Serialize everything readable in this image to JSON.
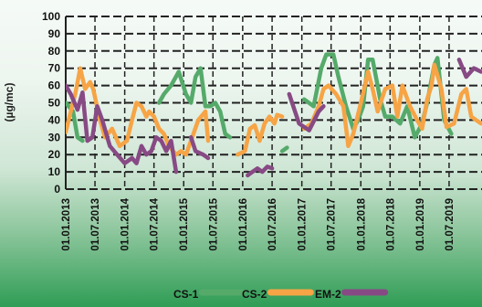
{
  "chart_data": {
    "type": "line",
    "title": "",
    "xlabel": "",
    "ylabel": "(µg/mc)",
    "ylim": [
      0,
      100
    ],
    "yticks": [
      "0",
      "10",
      "20",
      "30",
      "40",
      "50",
      "60",
      "70",
      "80",
      "90",
      "100"
    ],
    "xtick_labels": [
      "01.01.2013",
      "01.07.2013",
      "01.01.2014",
      "01.07.2014",
      "01.01.2015",
      "01.07.2015",
      "01.01.2016",
      "01.07.2016",
      "01.01.2017",
      "01.07.2017",
      "01.01.2018",
      "01.07.2018",
      "01.01.2019",
      "01.07.2019"
    ],
    "grid": "dashed, horizontal and vertical",
    "legend_position": "bottom",
    "series": [
      {
        "name": "CS-1",
        "color": "#55aa6a",
        "segments": [
          [
            [
              "2013-01-01",
              50
            ],
            [
              "2013-02-15",
              45
            ],
            [
              "2013-03-15",
              30
            ],
            [
              "2013-04-15",
              28
            ]
          ],
          [
            [
              "2014-08-01",
              50
            ],
            [
              "2014-09-01",
              55
            ],
            [
              "2014-10-15",
              60
            ],
            [
              "2014-12-01",
              68
            ],
            [
              "2015-01-15",
              55
            ],
            [
              "2015-02-15",
              50
            ],
            [
              "2015-03-15",
              65
            ],
            [
              "2015-04-15",
              70
            ],
            [
              "2015-05-15",
              48
            ],
            [
              "2015-06-15",
              48
            ],
            [
              "2015-07-15",
              50
            ],
            [
              "2015-08-15",
              45
            ],
            [
              "2015-09-15",
              32
            ],
            [
              "2015-10-15",
              30
            ]
          ],
          [
            [
              "2016-09-01",
              22
            ],
            [
              "2016-10-01",
              24
            ]
          ],
          [
            [
              "2017-01-15",
              52
            ],
            [
              "2017-03-15",
              48
            ],
            [
              "2017-05-01",
              70
            ],
            [
              "2017-06-01",
              78
            ],
            [
              "2017-07-15",
              78
            ],
            [
              "2017-08-15",
              65
            ],
            [
              "2017-10-01",
              48
            ],
            [
              "2017-11-15",
              35
            ],
            [
              "2017-12-15",
              40
            ],
            [
              "2018-01-15",
              48
            ],
            [
              "2018-02-15",
              75
            ],
            [
              "2018-03-15",
              75
            ],
            [
              "2018-05-01",
              52
            ],
            [
              "2018-06-01",
              42
            ],
            [
              "2018-07-15",
              42
            ],
            [
              "2018-09-01",
              38
            ],
            [
              "2018-10-15",
              48
            ],
            [
              "2018-12-01",
              30
            ],
            [
              "2019-01-15",
              38
            ],
            [
              "2019-02-15",
              50
            ],
            [
              "2019-04-01",
              72
            ],
            [
              "2019-04-20",
              76
            ],
            [
              "2019-06-01",
              40
            ],
            [
              "2019-07-15",
              32
            ]
          ]
        ]
      },
      {
        "name": "CS-2",
        "color": "#f6a445",
        "segments": [
          [
            [
              "2013-01-01",
              33
            ],
            [
              "2013-02-01",
              45
            ],
            [
              "2013-03-01",
              55
            ],
            [
              "2013-04-01",
              70
            ],
            [
              "2013-05-01",
              58
            ],
            [
              "2013-06-01",
              62
            ],
            [
              "2013-06-20",
              58
            ],
            [
              "2013-08-01",
              40
            ],
            [
              "2013-09-01",
              30
            ],
            [
              "2013-10-15",
              35
            ],
            [
              "2013-12-01",
              25
            ],
            [
              "2014-01-15",
              28
            ],
            [
              "2014-02-15",
              40
            ],
            [
              "2014-03-15",
              50
            ],
            [
              "2014-04-15",
              48
            ],
            [
              "2014-05-15",
              42
            ],
            [
              "2014-06-01",
              45
            ],
            [
              "2014-07-01",
              42
            ],
            [
              "2014-08-01",
              35
            ],
            [
              "2014-09-01",
              32
            ],
            [
              "2014-10-01",
              25
            ],
            [
              "2014-11-15",
              20
            ],
            [
              "2014-12-15",
              22
            ],
            [
              "2015-01-15",
              20
            ],
            [
              "2015-02-15",
              28
            ],
            [
              "2015-04-01",
              40
            ],
            [
              "2015-05-15",
              45
            ],
            [
              "2015-06-01",
              28
            ]
          ],
          [
            [
              "2015-12-01",
              20
            ],
            [
              "2016-01-15",
              22
            ],
            [
              "2016-02-15",
              35
            ],
            [
              "2016-03-15",
              37
            ],
            [
              "2016-04-15",
              28
            ],
            [
              "2016-05-15",
              38
            ],
            [
              "2016-06-15",
              42
            ],
            [
              "2016-07-15",
              38
            ],
            [
              "2016-08-01",
              43
            ],
            [
              "2016-09-01",
              42
            ]
          ],
          [
            [
              "2017-01-15",
              35
            ],
            [
              "2017-03-01",
              38
            ],
            [
              "2017-04-15",
              48
            ],
            [
              "2017-05-15",
              58
            ],
            [
              "2017-06-15",
              60
            ],
            [
              "2017-08-01",
              55
            ],
            [
              "2017-09-15",
              48
            ],
            [
              "2017-10-15",
              25
            ],
            [
              "2017-11-15",
              32
            ],
            [
              "2018-01-01",
              50
            ],
            [
              "2018-02-15",
              68
            ],
            [
              "2018-03-15",
              58
            ],
            [
              "2018-04-15",
              45
            ],
            [
              "2018-06-01",
              58
            ],
            [
              "2018-07-15",
              60
            ],
            [
              "2018-08-15",
              42
            ],
            [
              "2018-09-15",
              60
            ],
            [
              "2018-11-01",
              48
            ],
            [
              "2018-12-15",
              40
            ],
            [
              "2019-01-15",
              35
            ],
            [
              "2019-02-15",
              52
            ],
            [
              "2019-03-15",
              60
            ],
            [
              "2019-04-01",
              72
            ],
            [
              "2019-05-15",
              58
            ],
            [
              "2019-06-15",
              36
            ],
            [
              "2019-08-01",
              38
            ],
            [
              "2019-09-15",
              55
            ],
            [
              "2019-10-15",
              58
            ],
            [
              "2019-11-15",
              42
            ],
            [
              "2019-12-15",
              40
            ],
            [
              "2020-01-15",
              38
            ]
          ]
        ]
      },
      {
        "name": "EM-2",
        "color": "#874a84",
        "segments": [
          [
            [
              "2013-01-01",
              60
            ],
            [
              "2013-02-01",
              55
            ],
            [
              "2013-03-15",
              46
            ],
            [
              "2013-04-15",
              56
            ],
            [
              "2013-05-15",
              28
            ],
            [
              "2013-06-15",
              30
            ],
            [
              "2013-07-15",
              48
            ],
            [
              "2013-08-15",
              40
            ],
            [
              "2013-10-01",
              25
            ],
            [
              "2013-11-15",
              20
            ],
            [
              "2014-01-01",
              15
            ],
            [
              "2014-02-15",
              18
            ],
            [
              "2014-03-15",
              15
            ],
            [
              "2014-04-15",
              25
            ],
            [
              "2014-05-15",
              20
            ],
            [
              "2014-06-15",
              22
            ],
            [
              "2014-07-15",
              30
            ],
            [
              "2014-08-15",
              28
            ],
            [
              "2014-09-15",
              22
            ],
            [
              "2014-10-15",
              28
            ],
            [
              "2014-11-15",
              10
            ]
          ],
          [
            [
              "2015-02-15",
              30
            ],
            [
              "2015-03-15",
              22
            ],
            [
              "2015-05-01",
              20
            ],
            [
              "2015-06-01",
              18
            ]
          ],
          [
            [
              "2016-02-01",
              8
            ],
            [
              "2016-03-01",
              10
            ],
            [
              "2016-04-01",
              12
            ],
            [
              "2016-05-01",
              10
            ],
            [
              "2016-06-01",
              13
            ],
            [
              "2016-07-01",
              12
            ]
          ],
          [
            [
              "2016-10-15",
              55
            ],
            [
              "2016-12-15",
              38
            ],
            [
              "2017-02-15",
              34
            ],
            [
              "2017-04-15",
              45
            ],
            [
              "2017-05-15",
              48
            ]
          ],
          [
            [
              "2019-09-01",
              75
            ],
            [
              "2019-10-15",
              65
            ],
            [
              "2019-12-01",
              70
            ],
            [
              "2020-01-15",
              68
            ]
          ]
        ]
      }
    ]
  }
}
